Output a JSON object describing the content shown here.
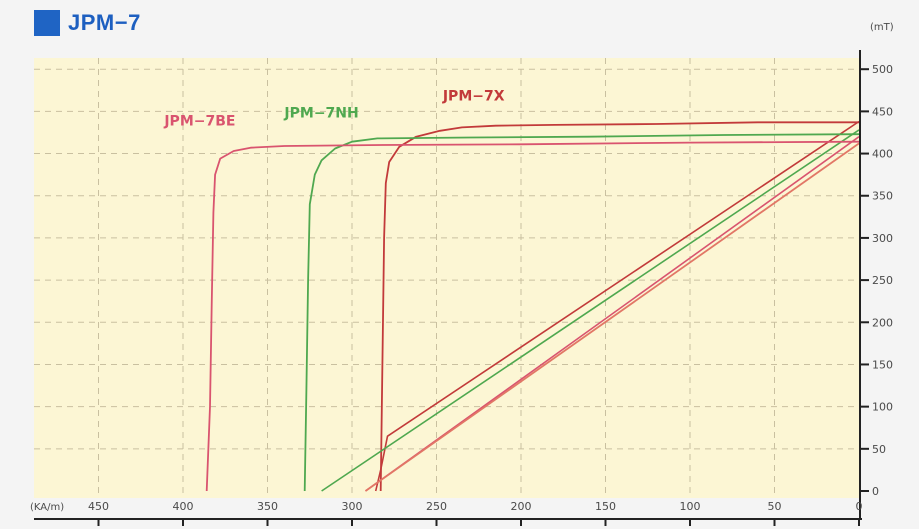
{
  "title": "JPM−7",
  "colors": {
    "title": "#1d5fc0",
    "plot_bg": "#fcf6d4",
    "grid": "#c9c0a0",
    "axis": "#222222"
  },
  "chart_data": {
    "type": "line",
    "title": "JPM−7",
    "x_unit_label": "(KA/m)",
    "y_unit_label": "(mT)",
    "x_reversed": true,
    "xlim": [
      0,
      490
    ],
    "ylim": [
      0,
      500
    ],
    "x_ticks": [
      450,
      400,
      350,
      300,
      250,
      200,
      150,
      100,
      50,
      0
    ],
    "y_ticks": [
      500,
      450,
      400,
      350,
      300,
      250,
      200,
      150,
      100,
      50,
      0
    ],
    "grid": true,
    "series": [
      {
        "name": "JPM−7X",
        "color": "#c23a3a",
        "label_at": [
          228,
          463
        ],
        "points": [
          [
            0,
            437
          ],
          [
            60,
            437
          ],
          [
            120,
            435
          ],
          [
            180,
            434
          ],
          [
            215,
            433
          ],
          [
            235,
            431
          ],
          [
            248,
            427
          ],
          [
            262,
            420
          ],
          [
            272,
            408
          ],
          [
            278,
            390
          ],
          [
            280,
            365
          ],
          [
            281,
            300
          ],
          [
            282,
            150
          ],
          [
            283,
            0
          ]
        ],
        "recoil": [
          [
            0,
            438
          ],
          [
            279,
            65
          ],
          [
            283,
            25
          ],
          [
            286,
            0
          ]
        ]
      },
      {
        "name": "JPM−7NH",
        "color": "#4fa84f",
        "label_at": [
          318,
          443
        ],
        "points": [
          [
            0,
            423
          ],
          [
            80,
            422
          ],
          [
            160,
            420
          ],
          [
            230,
            419
          ],
          [
            285,
            418
          ],
          [
            300,
            414
          ],
          [
            310,
            406
          ],
          [
            318,
            392
          ],
          [
            322,
            375
          ],
          [
            325,
            340
          ],
          [
            326,
            250
          ],
          [
            327,
            120
          ],
          [
            328,
            0
          ]
        ],
        "recoil": [
          [
            0,
            428
          ],
          [
            318,
            0
          ]
        ]
      },
      {
        "name": "JPM−7BE",
        "color": "#d9546f",
        "label_at": [
          390,
          433
        ],
        "points": [
          [
            0,
            414
          ],
          [
            100,
            413
          ],
          [
            200,
            411
          ],
          [
            290,
            410
          ],
          [
            340,
            409
          ],
          [
            360,
            407
          ],
          [
            370,
            403
          ],
          [
            378,
            394
          ],
          [
            381,
            375
          ],
          [
            382,
            330
          ],
          [
            383,
            220
          ],
          [
            384,
            100
          ],
          [
            386,
            0
          ]
        ],
        "recoil": [
          [
            0,
            420
          ],
          [
            292,
            0
          ]
        ]
      },
      {
        "name": "",
        "color": "#e27766",
        "points": [
          [
            0,
            412
          ],
          [
            292,
            0
          ]
        ]
      }
    ]
  }
}
